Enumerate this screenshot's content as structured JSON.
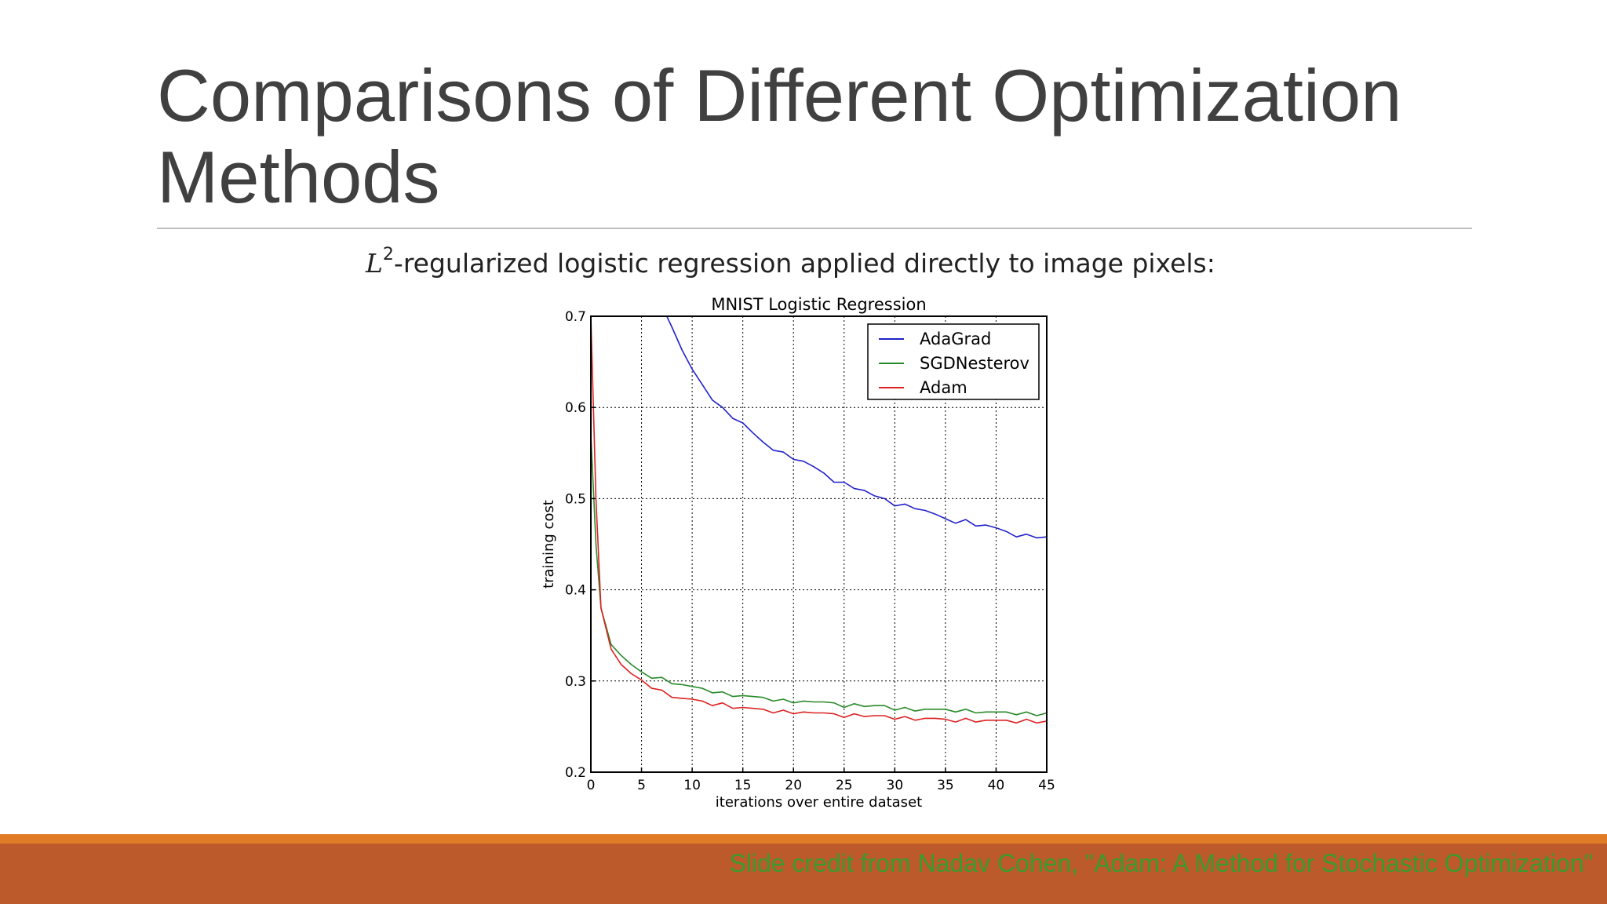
{
  "slide": {
    "title": "Comparisons of Different Optimization Methods",
    "subtitle_math": "L",
    "subtitle_sup": "2",
    "subtitle_rest": "-regularized logistic regression applied directly to image pixels:",
    "footer_credit": "Slide credit from Nadav Cohen, \"Adam: A Method for Stochastic Optimization\"",
    "colors": {
      "title": "#404040",
      "footer_stripe": "#e07b26",
      "footer_band": "#bc5a2b",
      "footer_text": "#3a9a2e"
    }
  },
  "chart_data": {
    "type": "line",
    "title": "MNIST Logistic Regression",
    "xlabel": "iterations over entire dataset",
    "ylabel": "training cost",
    "xlim": [
      0,
      45
    ],
    "ylim": [
      0.2,
      0.7
    ],
    "xticks": [
      0,
      5,
      10,
      15,
      20,
      25,
      30,
      35,
      40,
      45
    ],
    "yticks": [
      0.2,
      0.3,
      0.4,
      0.5,
      0.6,
      0.7
    ],
    "ytick_labels": [
      "0.2",
      "0.3",
      "0.4",
      "0.5",
      "0.6",
      "0.7"
    ],
    "grid": true,
    "legend_position": "top-right",
    "series": [
      {
        "name": "AdaGrad",
        "color": "#2222cc",
        "x": [
          7.5,
          8,
          9,
          10,
          11,
          12,
          13,
          14,
          15,
          16,
          17,
          18,
          19,
          20,
          21,
          22,
          23,
          24,
          25,
          26,
          27,
          28,
          29,
          30,
          31,
          32,
          33,
          34,
          35,
          36,
          37,
          38,
          39,
          40,
          41,
          42,
          43,
          44,
          45
        ],
        "values": [
          0.7,
          0.688,
          0.663,
          0.642,
          0.625,
          0.608,
          0.6,
          0.588,
          0.583,
          0.572,
          0.562,
          0.553,
          0.551,
          0.543,
          0.541,
          0.535,
          0.528,
          0.518,
          0.518,
          0.511,
          0.509,
          0.503,
          0.5,
          0.492,
          0.494,
          0.489,
          0.487,
          0.483,
          0.478,
          0.473,
          0.477,
          0.47,
          0.471,
          0.468,
          0.464,
          0.458,
          0.461,
          0.457,
          0.458
        ]
      },
      {
        "name": "SGDNesterov",
        "color": "#2a8a2a",
        "x": [
          0,
          0.5,
          1,
          2,
          3,
          4,
          5,
          6,
          7,
          8,
          9,
          10,
          11,
          12,
          13,
          14,
          15,
          16,
          17,
          18,
          19,
          20,
          21,
          22,
          23,
          24,
          25,
          26,
          27,
          28,
          29,
          30,
          31,
          32,
          33,
          34,
          35,
          36,
          37,
          38,
          39,
          40,
          41,
          42,
          43,
          44,
          45
        ],
        "values": [
          0.57,
          0.45,
          0.38,
          0.34,
          0.328,
          0.318,
          0.31,
          0.303,
          0.304,
          0.297,
          0.296,
          0.294,
          0.292,
          0.287,
          0.288,
          0.283,
          0.284,
          0.283,
          0.282,
          0.278,
          0.28,
          0.276,
          0.278,
          0.277,
          0.277,
          0.276,
          0.271,
          0.275,
          0.272,
          0.273,
          0.273,
          0.268,
          0.271,
          0.267,
          0.269,
          0.269,
          0.269,
          0.266,
          0.269,
          0.265,
          0.266,
          0.266,
          0.266,
          0.263,
          0.266,
          0.262,
          0.265
        ]
      },
      {
        "name": "Adam",
        "color": "#dd2222",
        "x": [
          0,
          0.5,
          1,
          2,
          3,
          4,
          5,
          6,
          7,
          8,
          9,
          10,
          11,
          12,
          13,
          14,
          15,
          16,
          17,
          18,
          19,
          20,
          21,
          22,
          23,
          24,
          25,
          26,
          27,
          28,
          29,
          30,
          31,
          32,
          33,
          34,
          35,
          36,
          37,
          38,
          39,
          40,
          41,
          42,
          43,
          44,
          45
        ],
        "values": [
          0.7,
          0.5,
          0.38,
          0.335,
          0.318,
          0.308,
          0.301,
          0.292,
          0.29,
          0.282,
          0.281,
          0.28,
          0.278,
          0.273,
          0.276,
          0.27,
          0.271,
          0.27,
          0.269,
          0.265,
          0.268,
          0.264,
          0.266,
          0.265,
          0.265,
          0.264,
          0.26,
          0.264,
          0.261,
          0.262,
          0.262,
          0.258,
          0.261,
          0.257,
          0.259,
          0.259,
          0.258,
          0.255,
          0.259,
          0.255,
          0.257,
          0.257,
          0.257,
          0.254,
          0.258,
          0.254,
          0.256
        ]
      }
    ]
  }
}
